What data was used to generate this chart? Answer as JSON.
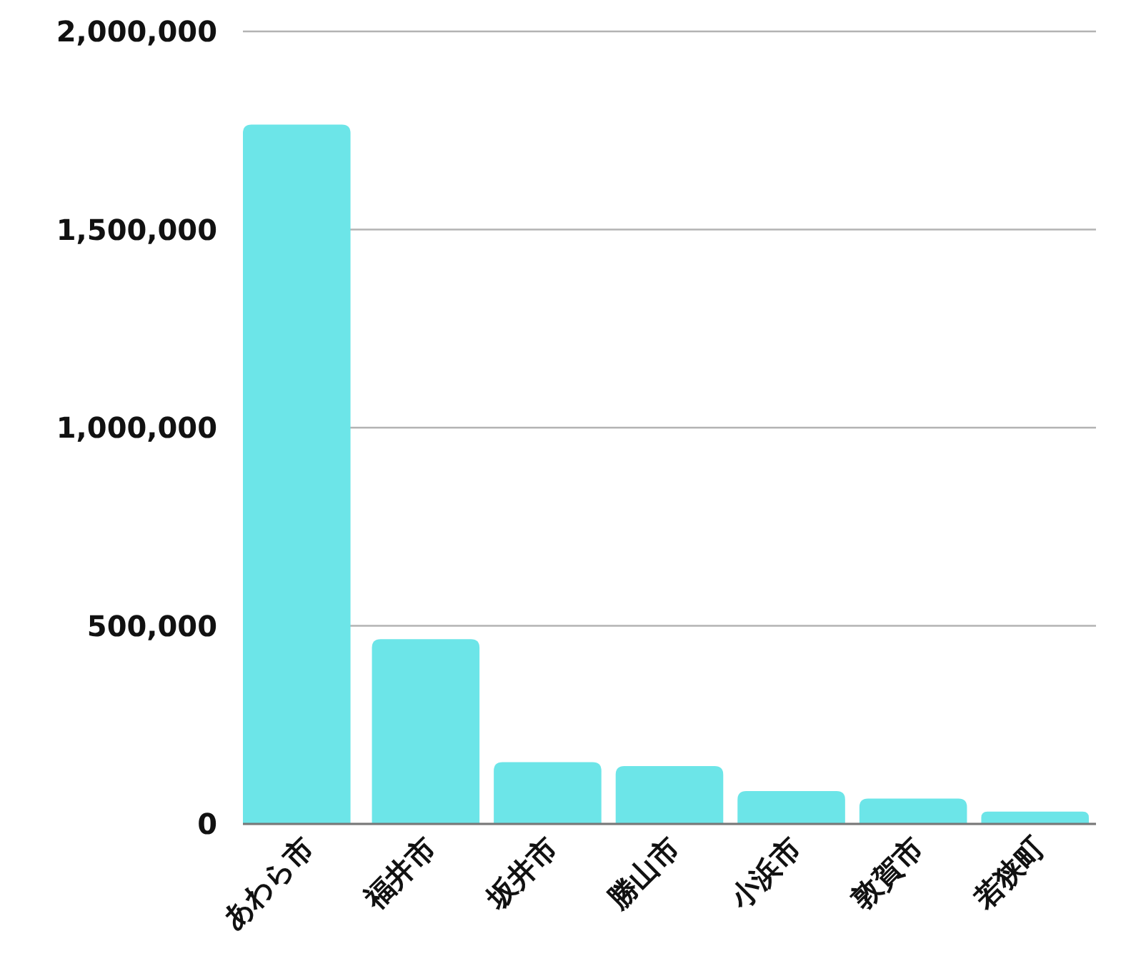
{
  "chart_data": {
    "type": "bar",
    "categories": [
      "あわら市",
      "福井市",
      "坂井市",
      "勝山市",
      "小浜市",
      "敦賀市",
      "若狭町"
    ],
    "values": [
      1765000,
      466000,
      156000,
      146000,
      83000,
      64000,
      31000
    ],
    "color": "#6ce5e8",
    "ylim": [
      0,
      2000000
    ],
    "yticks": [
      {
        "value": 0,
        "label": "0"
      },
      {
        "value": 500000,
        "label": "500,000"
      },
      {
        "value": 1000000,
        "label": "1,000,000"
      },
      {
        "value": 1500000,
        "label": "1,500,000"
      },
      {
        "value": 2000000,
        "label": "2,000,000"
      }
    ],
    "grid": "y"
  }
}
